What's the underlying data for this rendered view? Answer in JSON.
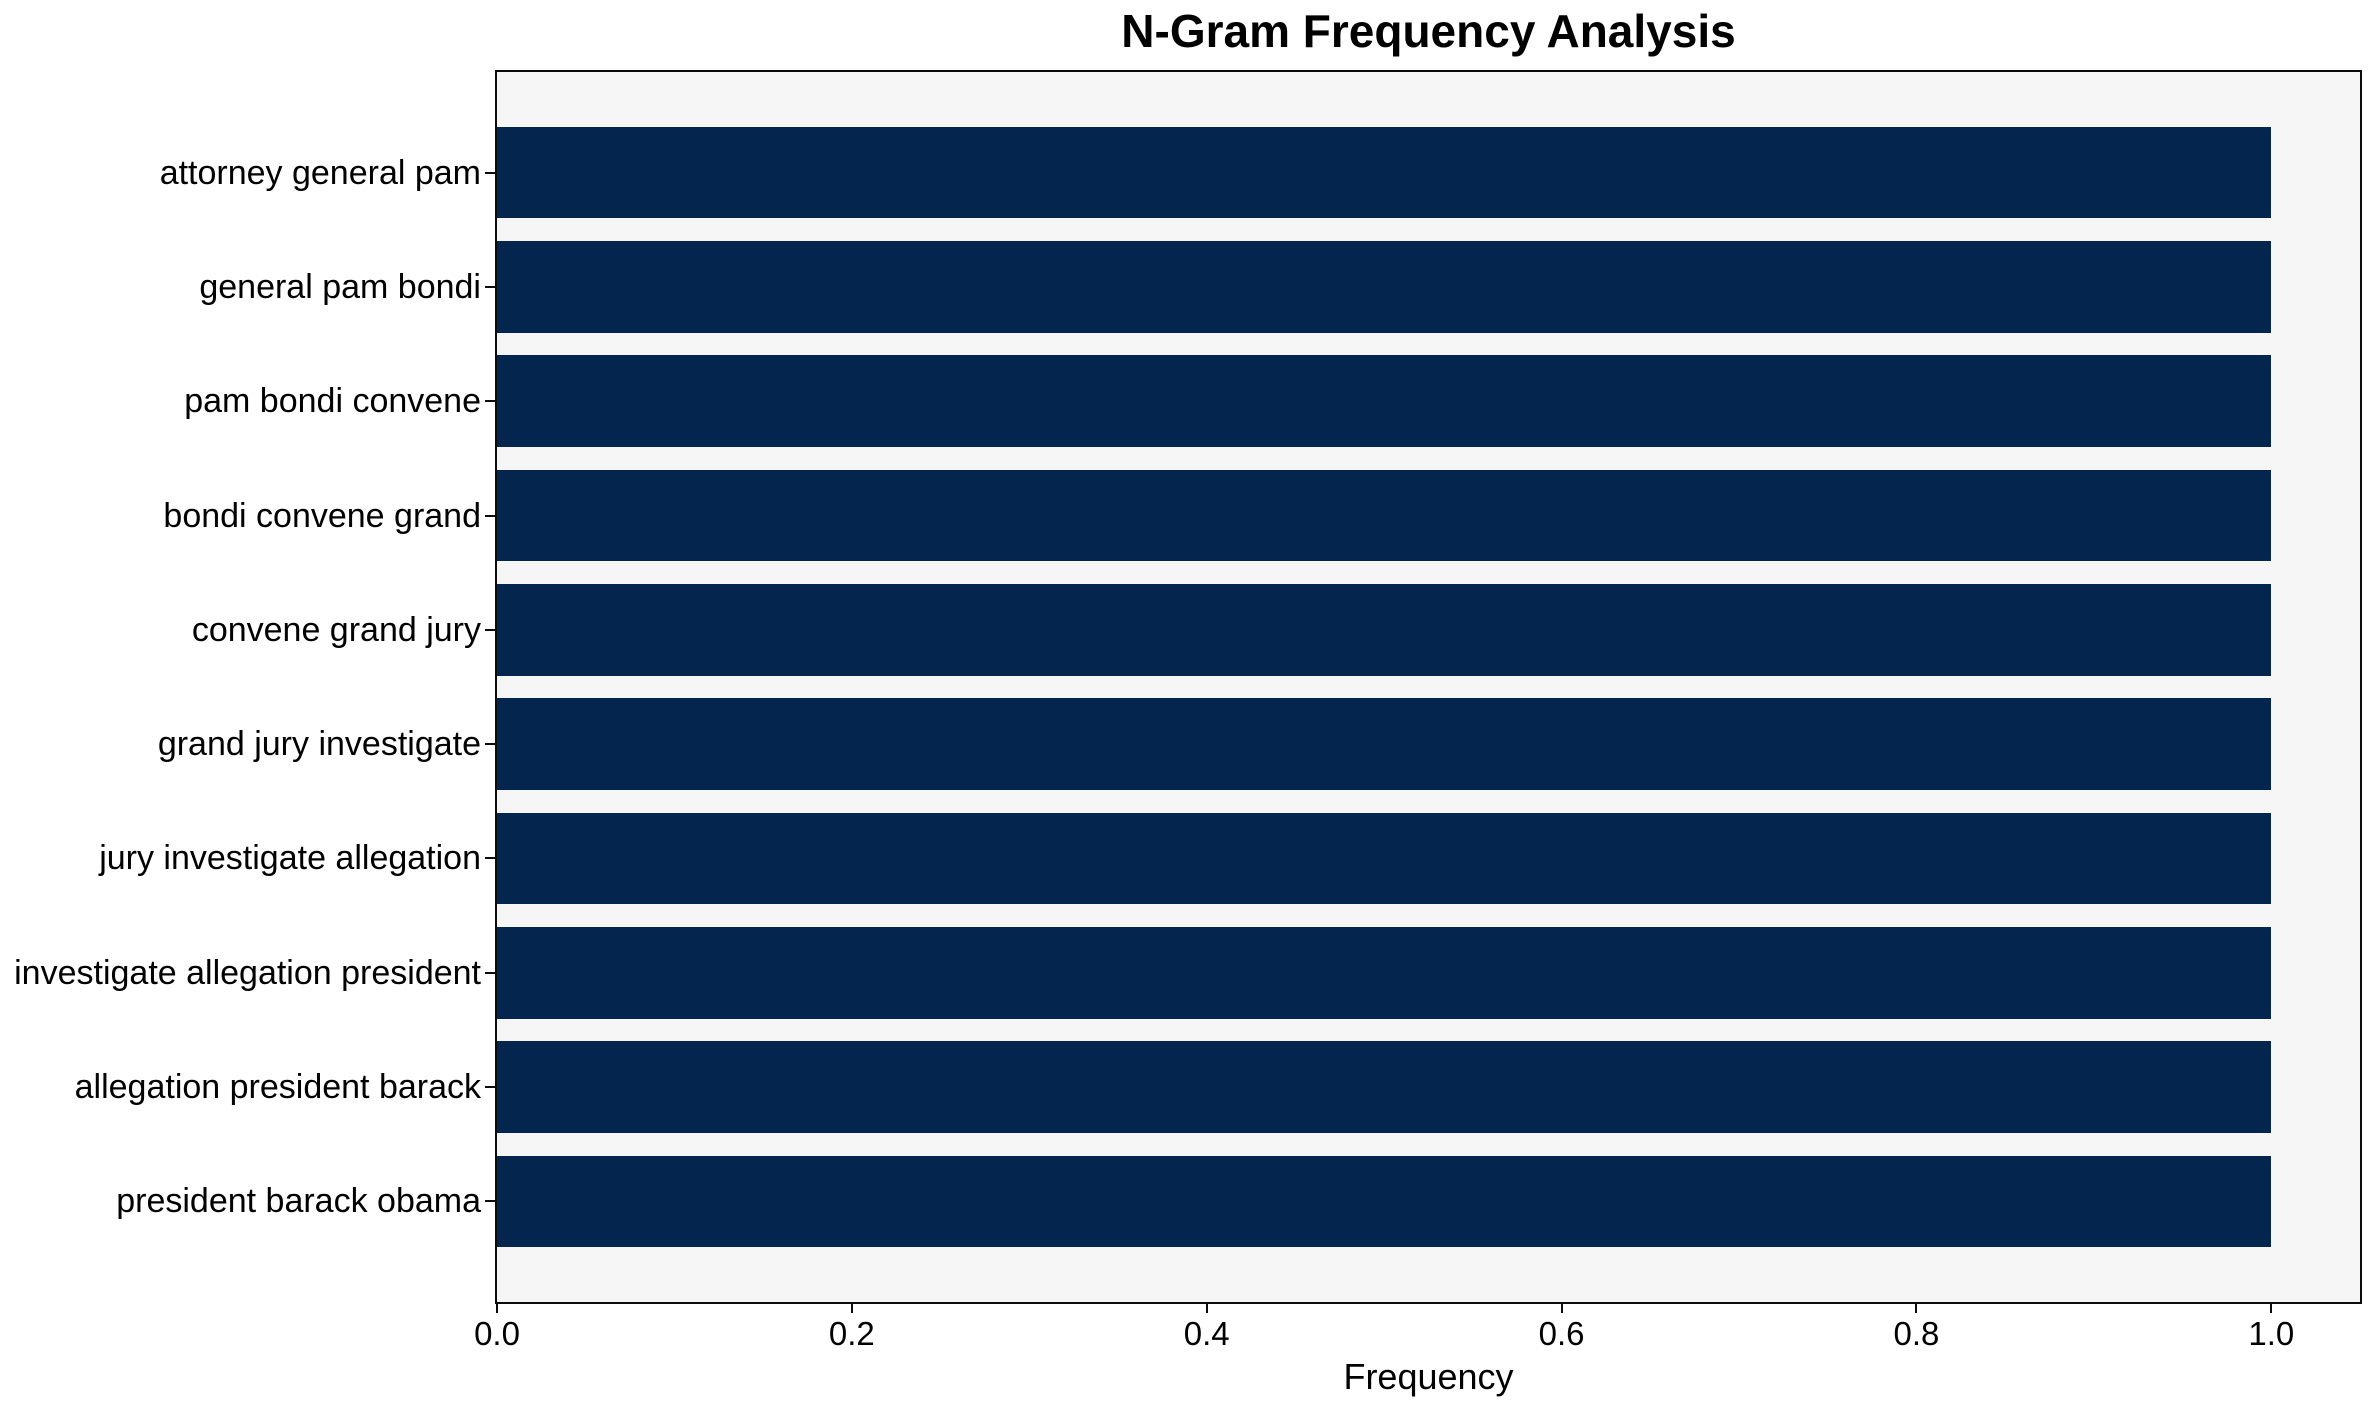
{
  "chart_data": {
    "type": "bar",
    "orientation": "horizontal",
    "title": "N-Gram Frequency Analysis",
    "xlabel": "Frequency",
    "ylabel": "",
    "categories": [
      "attorney general pam",
      "general pam bondi",
      "pam bondi convene",
      "bondi convene grand",
      "convene grand jury",
      "grand jury investigate",
      "jury investigate allegation",
      "investigate allegation president",
      "allegation president barack",
      "president barack obama"
    ],
    "values": [
      1.0,
      1.0,
      1.0,
      1.0,
      1.0,
      1.0,
      1.0,
      1.0,
      1.0,
      1.0
    ],
    "xticks": [
      0.0,
      0.2,
      0.4,
      0.6,
      0.8,
      1.0
    ],
    "xtick_labels": [
      "0.0",
      "0.2",
      "0.4",
      "0.6",
      "0.8",
      "1.0"
    ],
    "xlim": [
      0,
      1.05
    ],
    "grid": false,
    "legend": "none",
    "bar_height_frac": 0.8,
    "colors": {
      "bar": "#04264e",
      "plot_background": "#f6f6f6",
      "figure_background": "#ffffff",
      "spine": "#0c0c0c",
      "text": "#000000"
    }
  }
}
